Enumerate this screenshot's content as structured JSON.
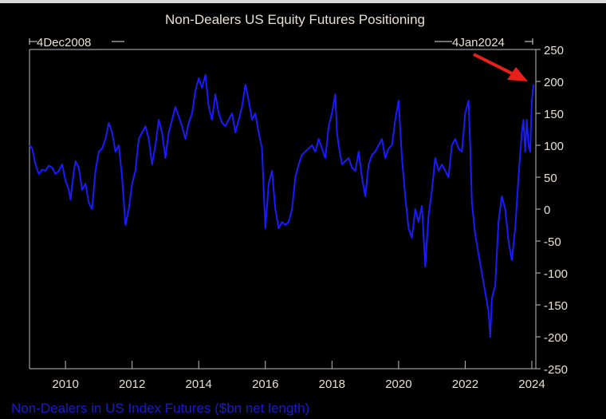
{
  "chart_data": {
    "type": "line",
    "title": "Non-Dealers US Equity Futures Positioning",
    "start_label": "4Dec2008",
    "end_label": "4Jan2024",
    "legend": "Non-Dealers in US Index Futures ($bn net length)",
    "legend_placement": "bottom-left",
    "xlim": [
      2008.92,
      2024.12
    ],
    "ylim": [
      -250,
      250
    ],
    "x_ticks": [
      "2010",
      "2012",
      "2014",
      "2016",
      "2018",
      "2020",
      "2022",
      "2024"
    ],
    "y_ticks": [
      "250",
      "200",
      "150",
      "100",
      "50",
      "0",
      "-50",
      "-100",
      "-150",
      "-200",
      "-250"
    ],
    "grid": false,
    "series_color": "#1a1aff",
    "annotation": "red arrow pointing to latest value",
    "series": [
      {
        "name": "Non-Dealers in US Index Futures ($bn net length)",
        "points": [
          [
            2008.92,
            100
          ],
          [
            2009.0,
            95
          ],
          [
            2009.1,
            70
          ],
          [
            2009.2,
            55
          ],
          [
            2009.3,
            62
          ],
          [
            2009.4,
            60
          ],
          [
            2009.5,
            68
          ],
          [
            2009.6,
            65
          ],
          [
            2009.7,
            55
          ],
          [
            2009.8,
            60
          ],
          [
            2009.9,
            70
          ],
          [
            2010.0,
            45
          ],
          [
            2010.1,
            30
          ],
          [
            2010.15,
            15
          ],
          [
            2010.25,
            60
          ],
          [
            2010.3,
            75
          ],
          [
            2010.4,
            65
          ],
          [
            2010.5,
            30
          ],
          [
            2010.6,
            40
          ],
          [
            2010.7,
            10
          ],
          [
            2010.8,
            0
          ],
          [
            2010.9,
            60
          ],
          [
            2011.0,
            90
          ],
          [
            2011.1,
            95
          ],
          [
            2011.2,
            110
          ],
          [
            2011.3,
            135
          ],
          [
            2011.4,
            120
          ],
          [
            2011.5,
            90
          ],
          [
            2011.6,
            100
          ],
          [
            2011.7,
            50
          ],
          [
            2011.8,
            -25
          ],
          [
            2011.9,
            0
          ],
          [
            2012.0,
            40
          ],
          [
            2012.1,
            60
          ],
          [
            2012.2,
            110
          ],
          [
            2012.3,
            120
          ],
          [
            2012.4,
            130
          ],
          [
            2012.5,
            110
          ],
          [
            2012.6,
            70
          ],
          [
            2012.7,
            100
          ],
          [
            2012.8,
            140
          ],
          [
            2012.9,
            120
          ],
          [
            2013.0,
            80
          ],
          [
            2013.1,
            120
          ],
          [
            2013.2,
            140
          ],
          [
            2013.3,
            160
          ],
          [
            2013.4,
            145
          ],
          [
            2013.5,
            130
          ],
          [
            2013.6,
            110
          ],
          [
            2013.7,
            135
          ],
          [
            2013.8,
            150
          ],
          [
            2013.9,
            185
          ],
          [
            2014.0,
            205
          ],
          [
            2014.1,
            190
          ],
          [
            2014.2,
            210
          ],
          [
            2014.3,
            160
          ],
          [
            2014.4,
            140
          ],
          [
            2014.5,
            180
          ],
          [
            2014.6,
            150
          ],
          [
            2014.7,
            135
          ],
          [
            2014.8,
            130
          ],
          [
            2014.9,
            140
          ],
          [
            2015.0,
            150
          ],
          [
            2015.1,
            120
          ],
          [
            2015.2,
            140
          ],
          [
            2015.3,
            160
          ],
          [
            2015.4,
            195
          ],
          [
            2015.5,
            170
          ],
          [
            2015.6,
            140
          ],
          [
            2015.7,
            150
          ],
          [
            2015.8,
            120
          ],
          [
            2015.9,
            95
          ],
          [
            2015.95,
            30
          ],
          [
            2016.0,
            -30
          ],
          [
            2016.1,
            40
          ],
          [
            2016.2,
            60
          ],
          [
            2016.3,
            0
          ],
          [
            2016.4,
            -30
          ],
          [
            2016.5,
            -20
          ],
          [
            2016.6,
            -25
          ],
          [
            2016.7,
            -20
          ],
          [
            2016.8,
            0
          ],
          [
            2016.9,
            50
          ],
          [
            2017.0,
            70
          ],
          [
            2017.1,
            85
          ],
          [
            2017.2,
            90
          ],
          [
            2017.3,
            95
          ],
          [
            2017.4,
            100
          ],
          [
            2017.5,
            90
          ],
          [
            2017.6,
            110
          ],
          [
            2017.7,
            95
          ],
          [
            2017.8,
            80
          ],
          [
            2017.9,
            130
          ],
          [
            2018.0,
            150
          ],
          [
            2018.1,
            180
          ],
          [
            2018.15,
            120
          ],
          [
            2018.2,
            100
          ],
          [
            2018.3,
            70
          ],
          [
            2018.4,
            75
          ],
          [
            2018.5,
            80
          ],
          [
            2018.6,
            65
          ],
          [
            2018.7,
            60
          ],
          [
            2018.8,
            90
          ],
          [
            2018.9,
            50
          ],
          [
            2019.0,
            20
          ],
          [
            2019.1,
            70
          ],
          [
            2019.2,
            85
          ],
          [
            2019.3,
            90
          ],
          [
            2019.4,
            100
          ],
          [
            2019.5,
            110
          ],
          [
            2019.6,
            80
          ],
          [
            2019.7,
            95
          ],
          [
            2019.8,
            100
          ],
          [
            2019.9,
            140
          ],
          [
            2020.0,
            170
          ],
          [
            2020.1,
            80
          ],
          [
            2020.2,
            20
          ],
          [
            2020.3,
            -30
          ],
          [
            2020.4,
            -45
          ],
          [
            2020.5,
            0
          ],
          [
            2020.6,
            -20
          ],
          [
            2020.7,
            5
          ],
          [
            2020.75,
            -40
          ],
          [
            2020.8,
            -90
          ],
          [
            2020.9,
            -10
          ],
          [
            2021.0,
            30
          ],
          [
            2021.1,
            80
          ],
          [
            2021.2,
            60
          ],
          [
            2021.3,
            70
          ],
          [
            2021.4,
            60
          ],
          [
            2021.5,
            50
          ],
          [
            2021.6,
            100
          ],
          [
            2021.7,
            110
          ],
          [
            2021.8,
            95
          ],
          [
            2021.9,
            90
          ],
          [
            2022.0,
            150
          ],
          [
            2022.1,
            170
          ],
          [
            2022.15,
            100
          ],
          [
            2022.2,
            10
          ],
          [
            2022.3,
            -40
          ],
          [
            2022.4,
            -70
          ],
          [
            2022.5,
            -100
          ],
          [
            2022.6,
            -130
          ],
          [
            2022.7,
            -160
          ],
          [
            2022.75,
            -200
          ],
          [
            2022.8,
            -140
          ],
          [
            2022.9,
            -120
          ],
          [
            2023.0,
            -20
          ],
          [
            2023.1,
            20
          ],
          [
            2023.2,
            0
          ],
          [
            2023.3,
            -50
          ],
          [
            2023.4,
            -80
          ],
          [
            2023.5,
            -30
          ],
          [
            2023.6,
            50
          ],
          [
            2023.7,
            120
          ],
          [
            2023.75,
            140
          ],
          [
            2023.8,
            90
          ],
          [
            2023.85,
            140
          ],
          [
            2023.9,
            100
          ],
          [
            2023.95,
            90
          ],
          [
            2024.0,
            170
          ],
          [
            2024.05,
            195
          ]
        ]
      }
    ]
  }
}
